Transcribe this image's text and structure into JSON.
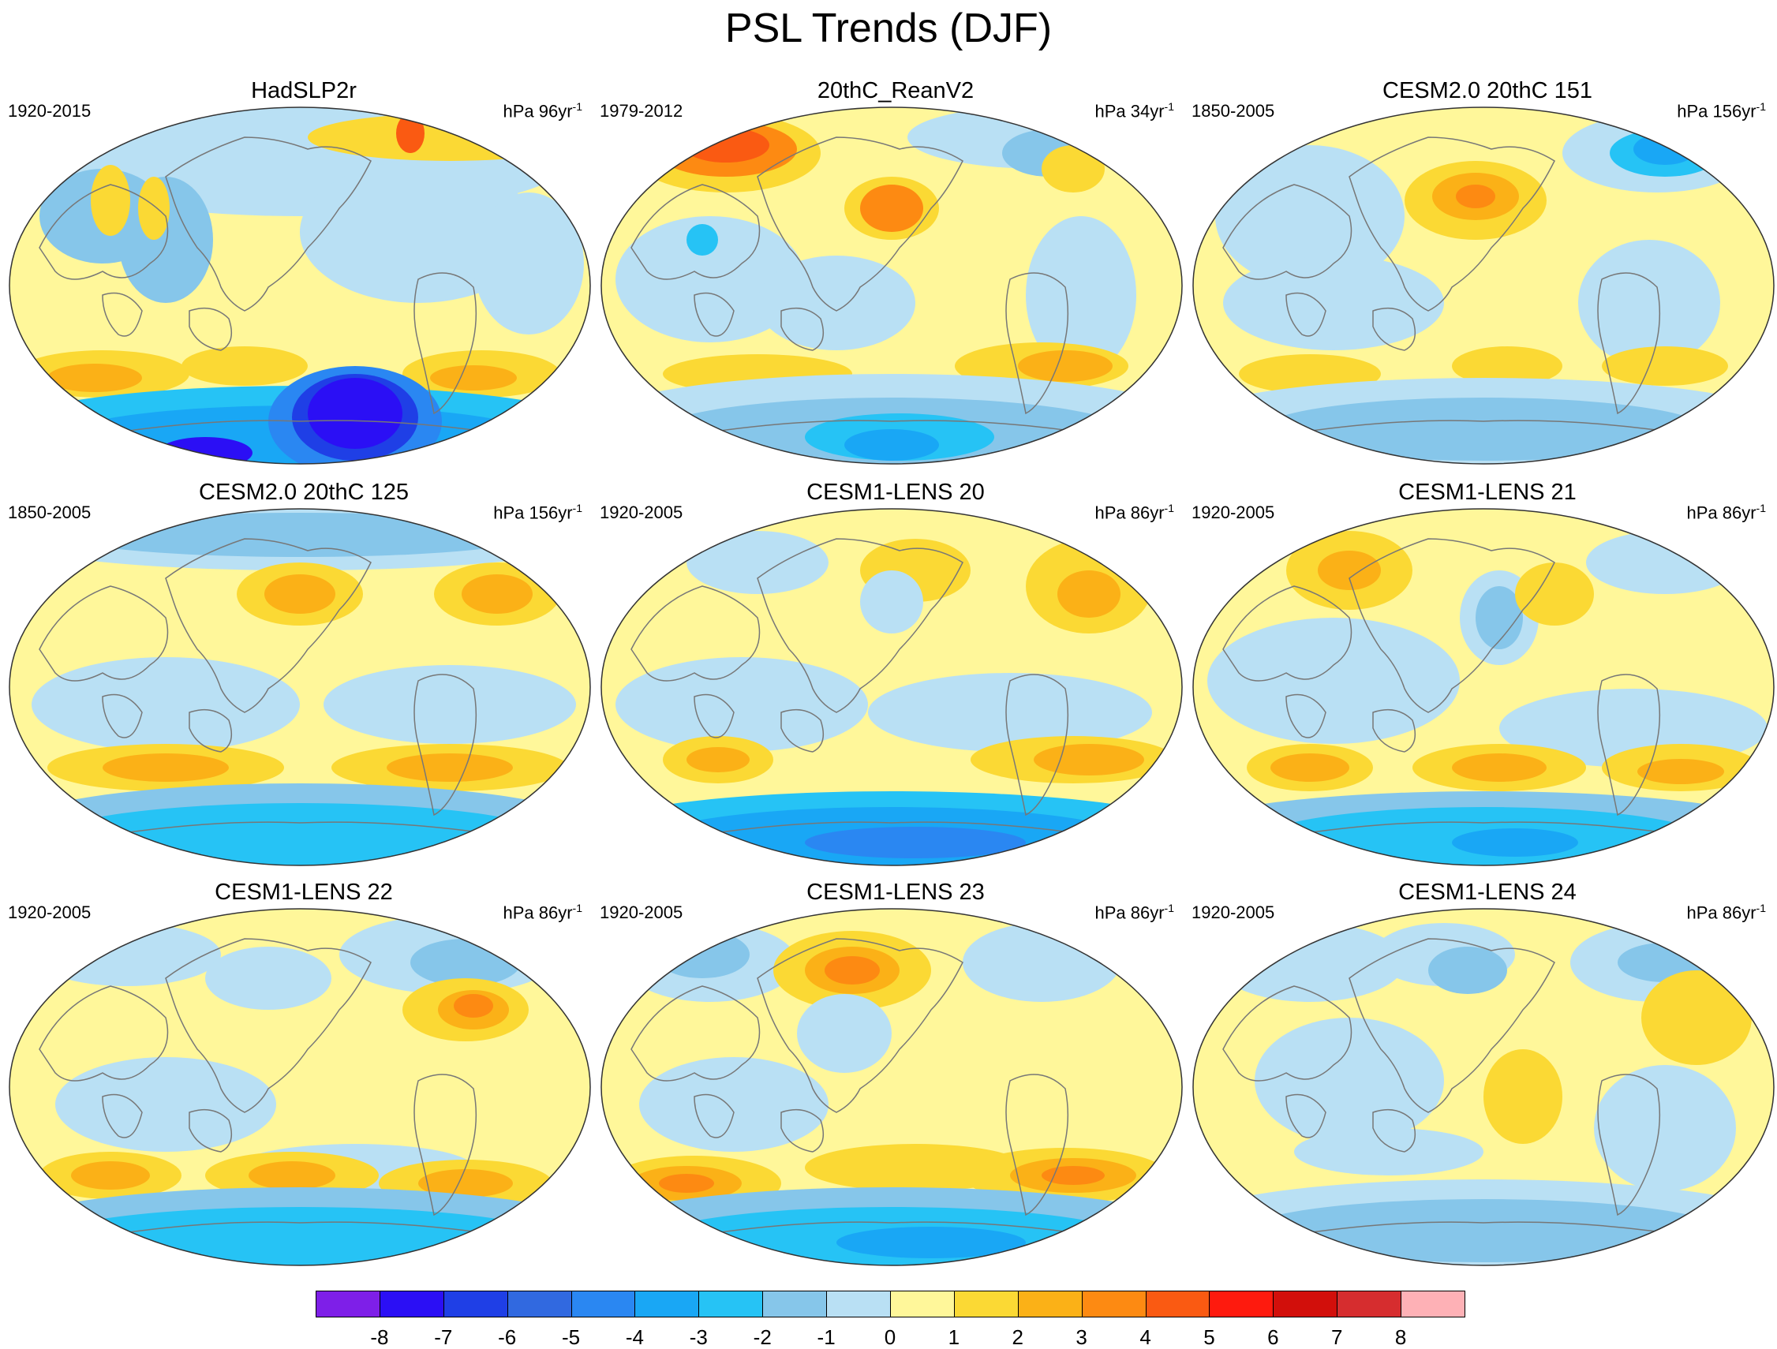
{
  "title": "PSL Trends (DJF)",
  "colors": {
    "levels": [
      "#7e1fe8",
      "#2b0ff5",
      "#1f3fe6",
      "#3169e0",
      "#2a87f2",
      "#19a7f5",
      "#26c3f5",
      "#86c6ea",
      "#b9e0f4",
      "#fff79a",
      "#fbd934",
      "#fbb117",
      "#fd8a12",
      "#fa5a12",
      "#fe1a0e",
      "#d20f0b",
      "#d62d2f",
      "#feb1b6"
    ],
    "coastline": "#777777",
    "map_outline": "#333333"
  },
  "colorbar": {
    "labels": [
      "-8",
      "-7",
      "-6",
      "-5",
      "-4",
      "-3",
      "-2",
      "-1",
      "0",
      "1",
      "2",
      "3",
      "4",
      "5",
      "6",
      "7",
      "8"
    ]
  },
  "panels": [
    {
      "title": "HadSLP2r",
      "period": "1920-2015",
      "units": "hPa 96yr",
      "units_exp": "-1"
    },
    {
      "title": "20thC_ReanV2",
      "period": "1979-2012",
      "units": "hPa 34yr",
      "units_exp": "-1"
    },
    {
      "title": "CESM2.0 20thC 151",
      "period": "1850-2005",
      "units": "hPa 156yr",
      "units_exp": "-1"
    },
    {
      "title": "CESM2.0 20thC 125",
      "period": "1850-2005",
      "units": "hPa 156yr",
      "units_exp": "-1"
    },
    {
      "title": "CESM1-LENS 20",
      "period": "1920-2005",
      "units": "hPa 86yr",
      "units_exp": "-1"
    },
    {
      "title": "CESM1-LENS 21",
      "period": "1920-2005",
      "units": "hPa 86yr",
      "units_exp": "-1"
    },
    {
      "title": "CESM1-LENS 22",
      "period": "1920-2005",
      "units": "hPa 86yr",
      "units_exp": "-1"
    },
    {
      "title": "CESM1-LENS 23",
      "period": "1920-2005",
      "units": "hPa 86yr",
      "units_exp": "-1"
    },
    {
      "title": "CESM1-LENS 24",
      "period": "1920-2005",
      "units": "hPa 86yr",
      "units_exp": "-1"
    }
  ]
}
